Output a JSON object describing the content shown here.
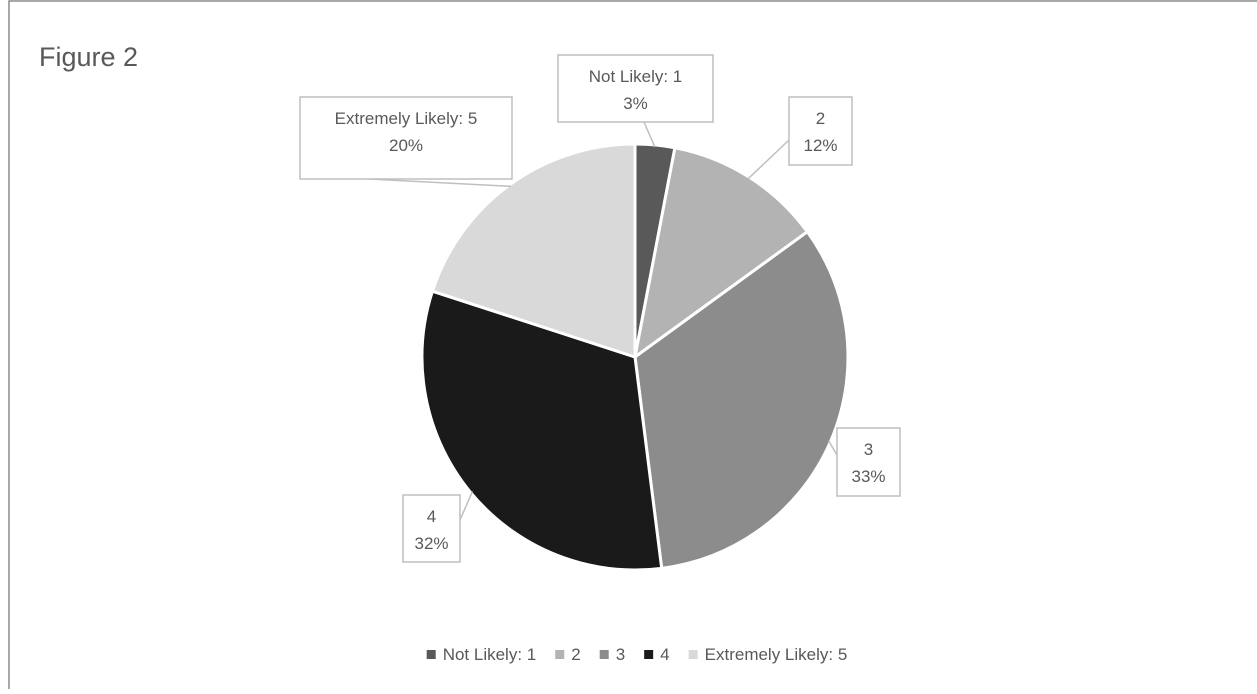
{
  "chart_data": {
    "type": "pie",
    "title": "Figure 2",
    "categories": [
      "Not Likely: 1",
      "2",
      "3",
      "4",
      "Extremely Likely: 5"
    ],
    "values": [
      3,
      12,
      33,
      32,
      20
    ],
    "data_labels": [
      {
        "name": "Not Likely: 1",
        "percent": "3%"
      },
      {
        "name": "2",
        "percent": "12%"
      },
      {
        "name": "3",
        "percent": "33%"
      },
      {
        "name": "4",
        "percent": "32%"
      },
      {
        "name": "Extremely Likely: 5",
        "percent": "20%"
      }
    ],
    "colors": [
      "#595959",
      "#b3b3b3",
      "#8c8c8c",
      "#1a1a1a",
      "#d9d9d9"
    ],
    "legend": {
      "position": "bottom",
      "items": [
        "Not Likely: 1",
        "2",
        "3",
        "4",
        "Extremely Likely: 5"
      ]
    }
  }
}
